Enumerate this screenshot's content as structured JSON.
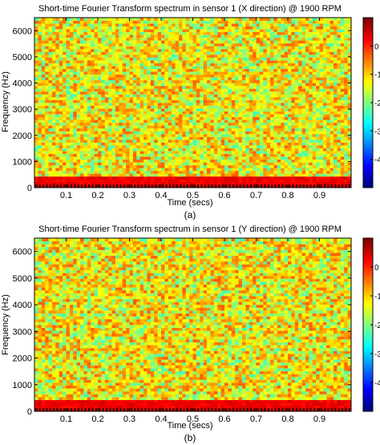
{
  "panels": [
    {
      "caption": "(a)",
      "chart_data": {
        "type": "heatmap",
        "title": "Short-time Fourier Transform spectrum in sensor 1 (X direction) @ 1900 RPM",
        "xlabel": "Time (secs)",
        "ylabel": "Frequency (Hz)",
        "xlim": [
          0,
          1.0
        ],
        "ylim": [
          0,
          6500
        ],
        "x_ticks": [
          0.1,
          0.2,
          0.3,
          0.4,
          0.5,
          0.6,
          0.7,
          0.8,
          0.9
        ],
        "x_tick_labels": [
          "0.1",
          "0.2",
          "0.3",
          "0.4",
          "0.5",
          "0.6",
          "0.7",
          "0.8",
          "0.9"
        ],
        "y_ticks": [
          0,
          1000,
          2000,
          3000,
          4000,
          5000,
          6000
        ],
        "y_tick_labels": [
          "0",
          "1000",
          "2000",
          "3000",
          "4000",
          "5000",
          "6000"
        ],
        "colorbar": {
          "range": [
            -5,
            1
          ],
          "ticks": [
            0,
            -1,
            -2,
            -3,
            -4
          ],
          "tick_labels": [
            "0",
            "-1",
            "-2",
            "-3",
            "-4"
          ],
          "colormap": "jet"
        },
        "pattern": {
          "background_level_range": [
            -2.4,
            -0.3
          ],
          "low_band": {
            "freq_range": [
              0,
              400
            ],
            "level": 0.5
          },
          "time_bins": 90,
          "freq_bins": 60
        }
      }
    },
    {
      "caption": "(b)",
      "chart_data": {
        "type": "heatmap",
        "title": "Short-time Fourier Transform spectrum in sensor 1 (Y direction) @ 1900 RPM",
        "xlabel": "Time (secs)",
        "ylabel": "Frequency (Hz)",
        "xlim": [
          0,
          1.0
        ],
        "ylim": [
          0,
          6500
        ],
        "x_ticks": [
          0.1,
          0.2,
          0.3,
          0.4,
          0.5,
          0.6,
          0.7,
          0.8,
          0.9
        ],
        "x_tick_labels": [
          "0.1",
          "0.2",
          "0.3",
          "0.4",
          "0.5",
          "0.6",
          "0.7",
          "0.8",
          "0.9"
        ],
        "y_ticks": [
          0,
          1000,
          2000,
          3000,
          4000,
          5000,
          6000
        ],
        "y_tick_labels": [
          "0",
          "1000",
          "2000",
          "3000",
          "4000",
          "5000",
          "6000"
        ],
        "colorbar": {
          "range": [
            -5,
            1
          ],
          "ticks": [
            0,
            -1,
            -2,
            -3,
            -4
          ],
          "tick_labels": [
            "0",
            "-1",
            "-2",
            "-3",
            "-4"
          ],
          "colormap": "jet"
        },
        "pattern": {
          "background_level_range": [
            -2.4,
            -0.3
          ],
          "low_band": {
            "freq_range": [
              0,
              400
            ],
            "level": 0.5
          },
          "time_bins": 90,
          "freq_bins": 60
        }
      }
    }
  ]
}
